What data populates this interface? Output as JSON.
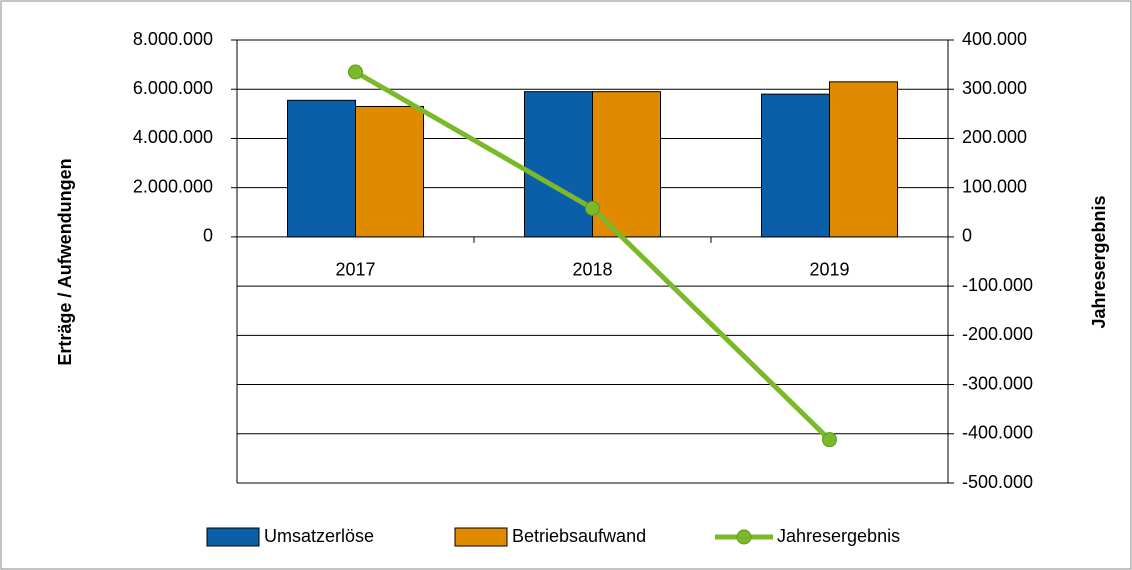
{
  "chart_data": {
    "type": "bar-line",
    "categories": [
      "2017",
      "2018",
      "2019"
    ],
    "series": [
      {
        "name": "Umsatzerlöse",
        "color": "#0b5ea8",
        "values": [
          5550000,
          5900000,
          5800000
        ]
      },
      {
        "name": "Betriebsaufwand",
        "color": "#e08a00",
        "values": [
          5300000,
          5900000,
          6300000
        ]
      },
      {
        "name": "Jahresergebnis",
        "color": "#7ab929",
        "type": "line",
        "axis": "y2",
        "values": [
          335000,
          58000,
          -412000
        ]
      }
    ],
    "ylabel": "Erträge / Aufwendungen",
    "y2label": "Jahresergebnis",
    "ylim": [
      -10000000,
      8000000
    ],
    "yticks": [
      0,
      {
        "value": 2000000,
        "label": "2.000.000"
      },
      {
        "value": 4000000,
        "label": "4.000.000"
      },
      {
        "value": 6000000,
        "label": "6.000.000"
      },
      {
        "value": 8000000,
        "label": "8.000.000"
      }
    ],
    "y2lim": [
      -500000,
      400000
    ],
    "y2ticks": [
      {
        "value": -500000,
        "label": "-500.000"
      },
      {
        "value": -400000,
        "label": "-400.000"
      },
      {
        "value": -300000,
        "label": "-300.000"
      },
      {
        "value": -200000,
        "label": "-200.000"
      },
      {
        "value": -100000,
        "label": "-100.000"
      },
      0,
      {
        "value": 100000,
        "label": "100.000"
      },
      {
        "value": 200000,
        "label": "200.000"
      },
      {
        "value": 300000,
        "label": "300.000"
      },
      {
        "value": 400000,
        "label": "400.000"
      }
    ],
    "grid": true,
    "legend": "bottom"
  }
}
